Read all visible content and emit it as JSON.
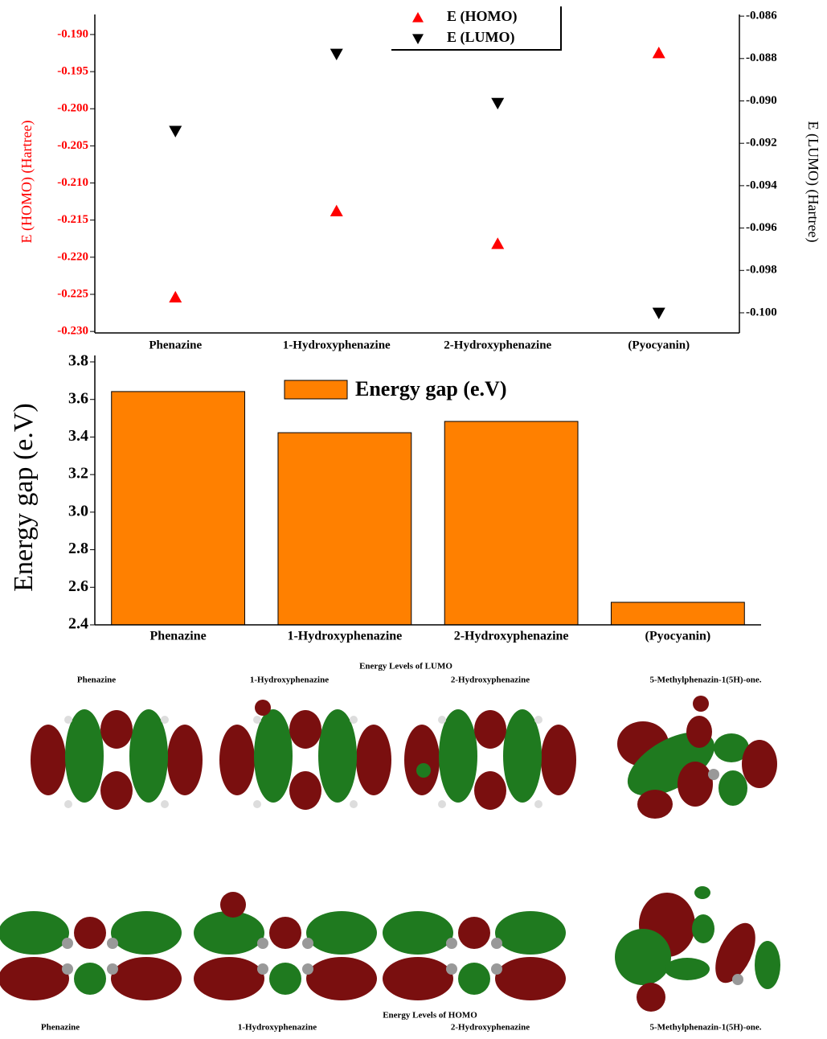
{
  "chart_data": [
    {
      "type": "scatter",
      "categories": [
        "Phenazine",
        "1-Hydroxyphenazine",
        "2-Hydroxyphenazine",
        "(Pyocyanin)"
      ],
      "series": [
        {
          "name": "E (HOMO)",
          "color": "#ff0000",
          "marker": "triangle-up",
          "values": [
            -0.2254,
            -0.2138,
            -0.2182,
            -0.1925
          ]
        },
        {
          "name": "E (LUMO)",
          "color": "#000000",
          "marker": "triangle-down",
          "axis": "y2",
          "values": [
            -0.09142,
            -0.08778,
            -0.0901,
            -0.1
          ]
        }
      ],
      "ylabel": "E (HOMO) (Hartree)",
      "y2label": "E (LUMO) (Hartree)",
      "ylim": [
        -0.2302,
        -0.1873
      ],
      "yticks": [
        {
          "value": -0.23,
          "label": "-0.230"
        },
        {
          "value": -0.225,
          "label": "-0.225"
        },
        {
          "value": -0.22,
          "label": "-0.220"
        },
        {
          "value": -0.215,
          "label": "-0.215"
        },
        {
          "value": -0.21,
          "label": "-0.210"
        },
        {
          "value": -0.205,
          "label": "-0.205"
        },
        {
          "value": -0.2,
          "label": "-0.200"
        },
        {
          "value": -0.195,
          "label": "-0.195"
        },
        {
          "value": -0.19,
          "label": "-0.190"
        }
      ],
      "y2lim": [
        -0.10095,
        -0.08592
      ],
      "y2ticks": [
        {
          "value": -0.1,
          "label": "-0.100"
        },
        {
          "value": -0.098,
          "label": "-0.098"
        },
        {
          "value": -0.096,
          "label": "-0.096"
        },
        {
          "value": -0.094,
          "label": "-0.094"
        },
        {
          "value": -0.092,
          "label": "-0.092"
        },
        {
          "value": -0.09,
          "label": "-0.090"
        },
        {
          "value": -0.088,
          "label": "-0.088"
        },
        {
          "value": -0.086,
          "label": "-0.086"
        }
      ],
      "ytick_color": "#ff0000",
      "ylabel_color": "#ff0000",
      "grid": false
    },
    {
      "type": "bar",
      "categories": [
        "Phenazine",
        "1-Hydroxyphenazine",
        "2-Hydroxyphenazine",
        "(Pyocyanin)"
      ],
      "series": [
        {
          "name": "Energy gap (e.V)",
          "color": "#ff8000",
          "values": [
            3.642,
            3.423,
            3.483,
            2.52
          ]
        }
      ],
      "ylabel": "Energy gap (e.V)",
      "ylim": [
        2.4,
        3.8
      ],
      "yticks": [
        2.4,
        2.6,
        2.8,
        {
          "value": 3,
          "label": "3.0"
        },
        3.2,
        3.4,
        3.6,
        3.8
      ],
      "grid": false
    }
  ],
  "orbitals": {
    "lumo": {
      "title": "Energy Levels of LUMO",
      "names": [
        "Phenazine",
        "1-Hydroxyphenazine",
        "2-Hydroxyphenazine",
        "5-Methylphenazin-1(5H)-one."
      ]
    },
    "homo": {
      "title": "Energy Levels of HOMO",
      "names": [
        "Phenazine",
        "1-Hydroxyphenazine",
        "2-Hydroxyphenazine",
        "5-Methylphenazin-1(5H)-one."
      ]
    }
  }
}
